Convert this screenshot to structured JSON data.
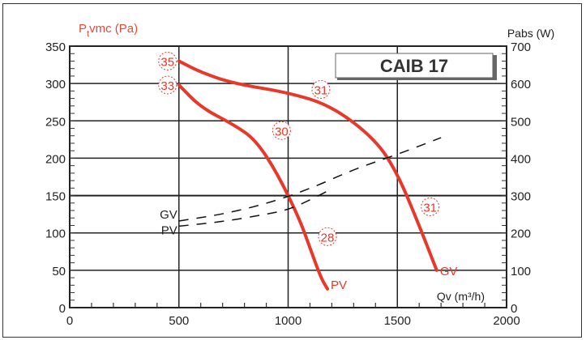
{
  "chart_data": {
    "type": "line",
    "title": "CAIB 17",
    "xlabel": "Qv (m³/h)",
    "ylabel_left": "Ptvmc (Pa)",
    "ylabel_right": "Pabs (W)",
    "xlim": [
      0,
      2000
    ],
    "ylim_left": [
      0,
      350
    ],
    "ylim_right": [
      0,
      700
    ],
    "x_ticks": [
      0,
      500,
      1000,
      1500,
      2000
    ],
    "y_ticks_left": [
      0,
      50,
      100,
      150,
      200,
      250,
      300,
      350
    ],
    "y_ticks_right": [
      0,
      100,
      200,
      300,
      400,
      500,
      600,
      700
    ],
    "grid": true,
    "series": [
      {
        "name": "GV pressure",
        "axis": "left",
        "style": "solid red",
        "x": [
          500,
          600,
          750,
          1000,
          1200,
          1400,
          1500,
          1600,
          1680
        ],
        "y": [
          330,
          315,
          300,
          288,
          270,
          225,
          180,
          110,
          50
        ],
        "end_label": "GV",
        "noise_labels": [
          {
            "x": 500,
            "y": 330,
            "dB": "35"
          },
          {
            "x": 1150,
            "y": 292,
            "dB": "31"
          },
          {
            "x": 1650,
            "y": 135,
            "dB": "31"
          }
        ]
      },
      {
        "name": "PV pressure",
        "axis": "left",
        "style": "solid red",
        "x": [
          500,
          600,
          750,
          850,
          950,
          1050,
          1100,
          1150,
          1180
        ],
        "y": [
          298,
          268,
          245,
          225,
          180,
          120,
          80,
          40,
          25
        ],
        "end_label": "PV",
        "noise_labels": [
          {
            "x": 500,
            "y": 298,
            "dB": "33"
          },
          {
            "x": 970,
            "y": 237,
            "dB": "30"
          },
          {
            "x": 1180,
            "y": 95,
            "dB": "28"
          }
        ]
      },
      {
        "name": "GV power",
        "axis": "right",
        "style": "dashed black",
        "x": [
          500,
          700,
          900,
          1100,
          1300,
          1500,
          1700
        ],
        "y": [
          232,
          250,
          278,
          318,
          370,
          410,
          455
        ],
        "start_label": "GV"
      },
      {
        "name": "PV power",
        "axis": "right",
        "style": "dashed black",
        "x": [
          500,
          700,
          900,
          1000,
          1100,
          1200
        ],
        "y": [
          218,
          230,
          250,
          262,
          288,
          318
        ],
        "start_label": "PV"
      }
    ]
  },
  "labels": {
    "left_axis": "vmc (Pa)",
    "left_axis_p": "P",
    "left_axis_sub": "t",
    "right_axis": "Pabs (W)",
    "x_axis": "Qv (m³/h)",
    "model": "CAIB 17",
    "gv": "GV",
    "pv": "PV"
  }
}
